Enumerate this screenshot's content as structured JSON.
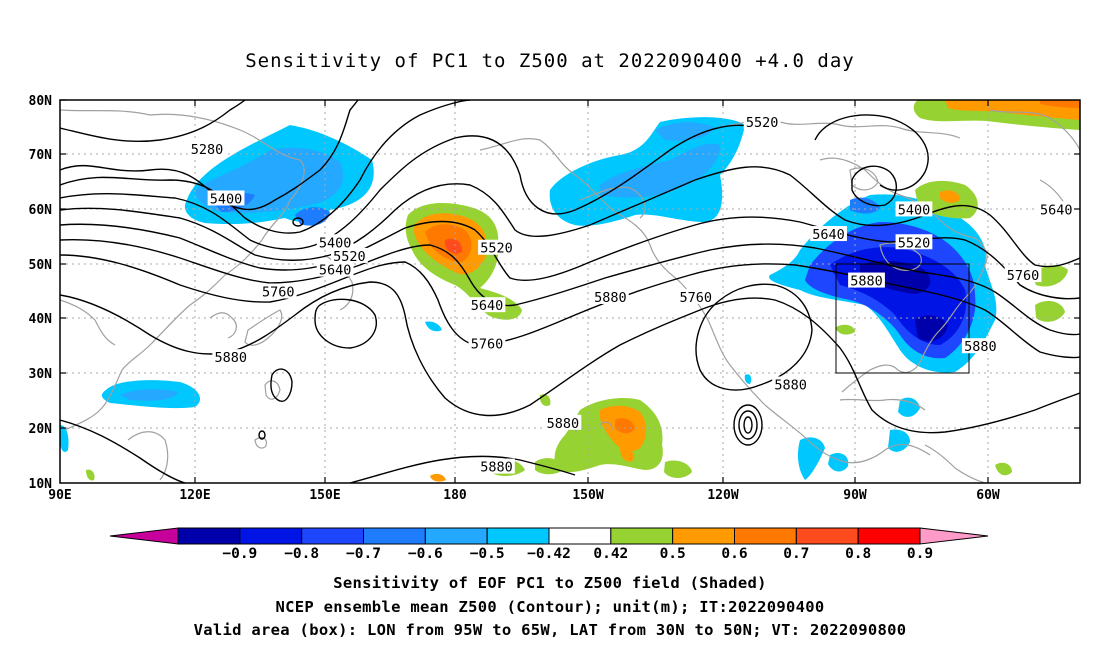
{
  "title": "Sensitivity of PC1 to Z500 at 2022090400 +4.0 day",
  "lat_ticks": [
    "80N",
    "70N",
    "60N",
    "50N",
    "40N",
    "30N",
    "20N",
    "10N"
  ],
  "lon_ticks": [
    "90E",
    "120E",
    "150E",
    "180",
    "150W",
    "120W",
    "90W",
    "60W"
  ],
  "colorbar": {
    "colors": [
      "#c8009b",
      "#0000aa",
      "#0014e6",
      "#1f46ff",
      "#1e7dff",
      "#25a8ff",
      "#00c8ff",
      "#ffffff",
      "#96d232",
      "#ff9b00",
      "#ff7800",
      "#ff4b1e",
      "#ff0000",
      "#ff9bc8"
    ],
    "labels": [
      "-0.9",
      "-0.8",
      "-0.7",
      "-0.6",
      "-0.5",
      "-0.42",
      "0.42",
      "0.5",
      "0.6",
      "0.7",
      "0.8",
      "0.9"
    ]
  },
  "contour_labels": [
    {
      "text": "5280",
      "lon": 121,
      "lat": 71
    },
    {
      "text": "5400",
      "lon": 125,
      "lat": 62
    },
    {
      "text": "5400",
      "lon": 148,
      "lat": 54
    },
    {
      "text": "5520",
      "lon": 151,
      "lat": 51.5
    },
    {
      "text": "5640",
      "lon": 148,
      "lat": 49
    },
    {
      "text": "5760",
      "lon": 136,
      "lat": 45
    },
    {
      "text": "5880",
      "lon": 126,
      "lat": 33
    },
    {
      "text": "5520",
      "lon": -178,
      "lat": 53
    },
    {
      "text": "5640",
      "lon": -180,
      "lat": 42.5
    },
    {
      "text": "5760",
      "lon": -180,
      "lat": 35.5
    },
    {
      "text": "5880",
      "lon": -154,
      "lat": 44
    },
    {
      "text": "5760",
      "lon": -136,
      "lat": 44
    },
    {
      "text": "5880",
      "lon": -164,
      "lat": 21
    },
    {
      "text": "5880",
      "lon": -178,
      "lat": 13
    },
    {
      "text": "5520",
      "lon": -122,
      "lat": 76
    },
    {
      "text": "5640",
      "lon": -108,
      "lat": 55.5
    },
    {
      "text": "5880",
      "lon": -100,
      "lat": 47
    },
    {
      "text": "5880",
      "lon": -116,
      "lat": 28
    },
    {
      "text": "5400",
      "lon": -90,
      "lat": 60
    },
    {
      "text": "5520",
      "lon": -90,
      "lat": 54
    },
    {
      "text": "5760",
      "lon": -67,
      "lat": 48
    },
    {
      "text": "5640",
      "lon": -60,
      "lat": 60
    },
    {
      "text": "5880",
      "lon": -76,
      "lat": 35
    }
  ],
  "valid_box": {
    "lon": [
      -95,
      -65
    ],
    "lat": [
      30,
      50
    ]
  },
  "captions": [
    "Sensitivity of EOF PC1 to Z500 field (Shaded)",
    "NCEP ensemble mean Z500 (Contour); unit(m); IT:2022090400",
    "Valid area (box): LON from 95W to 65W, LAT from 30N to 50N; VT: 2022090800"
  ]
}
